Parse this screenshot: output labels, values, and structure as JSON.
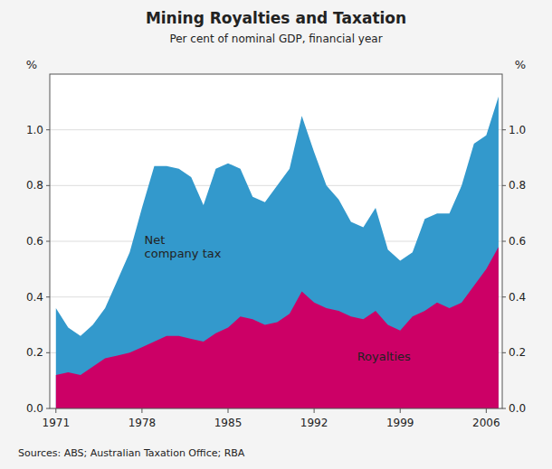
{
  "chart_data": {
    "type": "area",
    "title": "Mining Royalties and Taxation",
    "subtitle": "Per cent of nominal GDP, financial year",
    "source": "Sources: ABS; Australian Taxation Office; RBA",
    "ylabel": "%",
    "y2label": "%",
    "stacked": false,
    "grid": true,
    "x": [
      1971,
      1972,
      1973,
      1974,
      1975,
      1976,
      1977,
      1978,
      1979,
      1980,
      1981,
      1982,
      1983,
      1984,
      1985,
      1986,
      1987,
      1988,
      1989,
      1990,
      1991,
      1992,
      1993,
      1994,
      1995,
      1996,
      1997,
      1998,
      1999,
      2000,
      2001,
      2002,
      2003,
      2004,
      2005,
      2006,
      2007
    ],
    "series": [
      {
        "color": "#3399CC",
        "values": [
          0.36,
          0.29,
          0.26,
          0.3,
          0.36,
          0.46,
          0.56,
          0.72,
          0.87,
          0.87,
          0.86,
          0.83,
          0.73,
          0.86,
          0.88,
          0.86,
          0.76,
          0.74,
          0.8,
          0.86,
          1.05,
          0.92,
          0.8,
          0.75,
          0.67,
          0.65,
          0.72,
          0.57,
          0.53,
          0.56,
          0.68,
          0.7,
          0.7,
          0.8,
          0.95,
          0.98,
          1.12
        ]
      },
      {
        "color": "#CC0066",
        "values": [
          0.12,
          0.13,
          0.12,
          0.15,
          0.18,
          0.19,
          0.2,
          0.22,
          0.24,
          0.26,
          0.26,
          0.25,
          0.24,
          0.27,
          0.29,
          0.33,
          0.32,
          0.3,
          0.31,
          0.34,
          0.42,
          0.38,
          0.36,
          0.35,
          0.33,
          0.32,
          0.35,
          0.3,
          0.28,
          0.33,
          0.35,
          0.38,
          0.36,
          0.38,
          0.44,
          0.5,
          0.58
        ]
      }
    ],
    "annotations": [
      {
        "text": "Net\ncompany tax",
        "x": 1978.2,
        "y": 0.58
      },
      {
        "text": "Royalties",
        "x": 1995.5,
        "y": 0.185
      }
    ],
    "xlim": [
      1970.5,
      2007.3
    ],
    "xticks": [
      1971,
      1978,
      1985,
      1992,
      1999,
      2006
    ],
    "ylim": [
      0.0,
      1.2
    ],
    "yticks": [
      {
        "value": 0.0,
        "label": "0.0"
      },
      0.2,
      0.4,
      0.6,
      0.8,
      {
        "value": 1.0,
        "label": "1.0"
      }
    ],
    "y2lim": [
      0.0,
      1.2
    ],
    "y2ticks": [
      {
        "value": 0.0,
        "label": "0.0"
      },
      0.2,
      0.4,
      0.6,
      0.8,
      {
        "value": 1.0,
        "label": "1.0"
      }
    ]
  }
}
